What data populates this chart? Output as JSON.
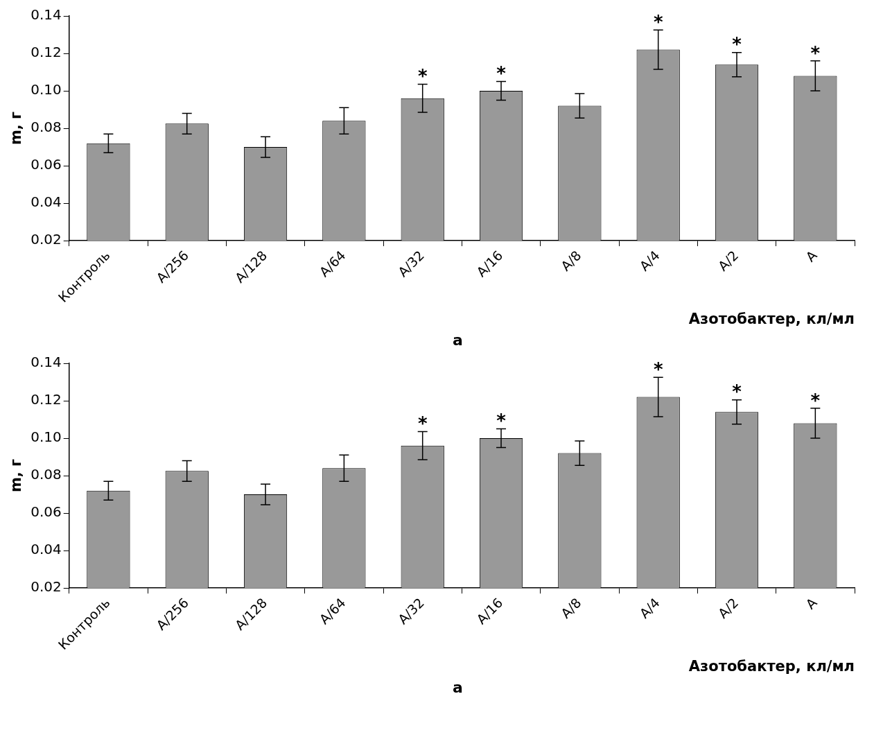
{
  "chart_data": [
    {
      "type": "bar",
      "xlabel": "Азотобактер, кл/мл",
      "ylabel": "m, г",
      "categories": [
        "Контроль",
        "A/256",
        "A/128",
        "A/64",
        "A/32",
        "A/16",
        "A/8",
        "A/4",
        "A/2",
        "A"
      ],
      "values": [
        0.072,
        0.0825,
        0.07,
        0.084,
        0.096,
        0.1,
        0.092,
        0.122,
        0.114,
        0.108
      ],
      "errors": [
        0.005,
        0.0055,
        0.0055,
        0.007,
        0.0075,
        0.005,
        0.0065,
        0.0105,
        0.0065,
        0.008
      ],
      "color": "#999999",
      "ylim": [
        0.02,
        0.14
      ],
      "yticks": [
        0.02,
        0.04,
        0.06,
        0.08,
        {
          "value": 0.1,
          "label": "0.10"
        },
        0.12,
        0.14
      ],
      "grid": false,
      "legend": false,
      "annotations": [
        {
          "text": "*",
          "x": "A/32",
          "y": 0.1035
        },
        {
          "text": "*",
          "x": "A/16",
          "y": 0.105
        },
        {
          "text": "*",
          "x": "A/4",
          "y": 0.1325
        },
        {
          "text": "*",
          "x": "A/2",
          "y": 0.1205
        },
        {
          "text": "*",
          "x": "A",
          "y": 0.116
        },
        "а"
      ]
    },
    {
      "type": "bar",
      "xlabel": "Азотобактер, кл/мл",
      "ylabel": "m, г",
      "categories": [
        "Контроль",
        "A/256",
        "A/128",
        "A/64",
        "A/32",
        "A/16",
        "A/8",
        "A/4",
        "A/2",
        "A"
      ],
      "values": [
        0.072,
        0.0825,
        0.07,
        0.084,
        0.096,
        0.1,
        0.092,
        0.122,
        0.114,
        0.108
      ],
      "errors": [
        0.005,
        0.0055,
        0.0055,
        0.007,
        0.0075,
        0.005,
        0.0065,
        0.0105,
        0.0065,
        0.008
      ],
      "color": "#999999",
      "ylim": [
        0.02,
        0.14
      ],
      "yticks": [
        0.02,
        0.04,
        0.06,
        0.08,
        {
          "value": 0.1,
          "label": "0.10"
        },
        0.12,
        0.14
      ],
      "grid": false,
      "legend": false,
      "annotations": [
        {
          "text": "*",
          "x": "A/32",
          "y": 0.1035
        },
        {
          "text": "*",
          "x": "A/16",
          "y": 0.105
        },
        {
          "text": "*",
          "x": "A/4",
          "y": 0.1325
        },
        {
          "text": "*",
          "x": "A/2",
          "y": 0.1205
        },
        {
          "text": "*",
          "x": "A",
          "y": 0.116
        },
        "а"
      ]
    }
  ]
}
